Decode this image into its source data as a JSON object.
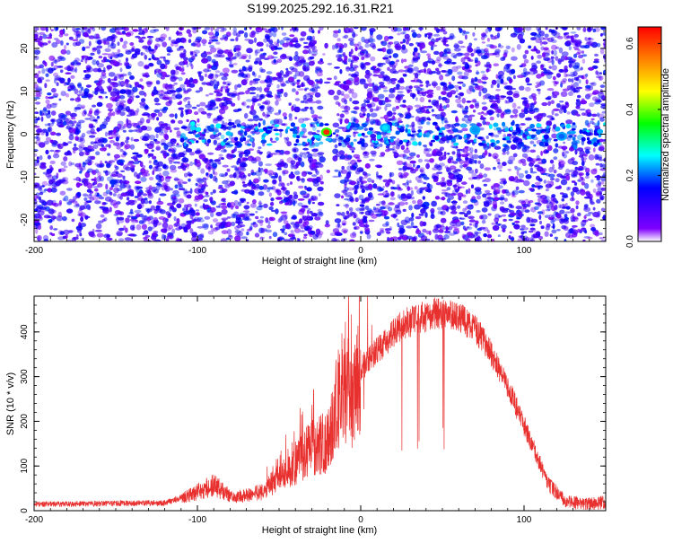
{
  "title": "S199.2025.292.16.31.R21",
  "chart_data": [
    {
      "type": "heatmap",
      "xlabel": "Height of straight line (km)",
      "ylabel": "Frequency (Hz)",
      "xlim": [
        -200,
        150
      ],
      "ylim": [
        -25,
        25
      ],
      "xticks": [
        -200,
        -100,
        0,
        100
      ],
      "yticks": [
        -20,
        -10,
        0,
        10,
        20
      ],
      "colorbar": {
        "label": "Normalized spectral amplitude",
        "range": [
          0.0,
          0.65
        ],
        "ticks": [
          0.0,
          0.2,
          0.4,
          0.6
        ],
        "colors": [
          "#ffffff",
          "#7f00ff",
          "#0000ff",
          "#00ffff",
          "#00ff00",
          "#ffff00",
          "#ff8000",
          "#ff0000"
        ]
      },
      "signal_band": {
        "center_hz": 0,
        "half_width_hz": 3
      },
      "hot_spots": [
        {
          "x": -21,
          "y": 0.5,
          "value": 0.62
        },
        {
          "x": 15,
          "y": 1.5,
          "value": 0.25
        },
        {
          "x": 70,
          "y": 1.0,
          "value": 0.22
        },
        {
          "x": 123,
          "y": -0.5,
          "value": 0.2
        }
      ],
      "gap": {
        "x": -20,
        "width_km": 4
      },
      "grid": false
    },
    {
      "type": "line",
      "xlabel": "Height of straight line (km)",
      "ylabel": "SNR (10 * v/v)",
      "xlim": [
        -200,
        150
      ],
      "ylim": [
        0,
        480
      ],
      "xticks": [
        -200,
        -100,
        0,
        100
      ],
      "yticks": [
        0,
        100,
        200,
        300,
        400
      ],
      "color": "#e8312f",
      "envelope": [
        {
          "x": -200,
          "y": 15
        },
        {
          "x": -120,
          "y": 18
        },
        {
          "x": -105,
          "y": 35
        },
        {
          "x": -90,
          "y": 60
        },
        {
          "x": -78,
          "y": 30
        },
        {
          "x": -60,
          "y": 45
        },
        {
          "x": -40,
          "y": 110
        },
        {
          "x": -30,
          "y": 150
        },
        {
          "x": -20,
          "y": 160
        },
        {
          "x": -12,
          "y": 290
        },
        {
          "x": -5,
          "y": 260
        },
        {
          "x": 0,
          "y": 320
        },
        {
          "x": 10,
          "y": 360
        },
        {
          "x": 25,
          "y": 420
        },
        {
          "x": 45,
          "y": 445
        },
        {
          "x": 60,
          "y": 440
        },
        {
          "x": 75,
          "y": 390
        },
        {
          "x": 90,
          "y": 280
        },
        {
          "x": 105,
          "y": 150
        },
        {
          "x": 115,
          "y": 60
        },
        {
          "x": 125,
          "y": 25
        },
        {
          "x": 135,
          "y": 15
        },
        {
          "x": 150,
          "y": 20
        }
      ],
      "grid": false
    }
  ]
}
